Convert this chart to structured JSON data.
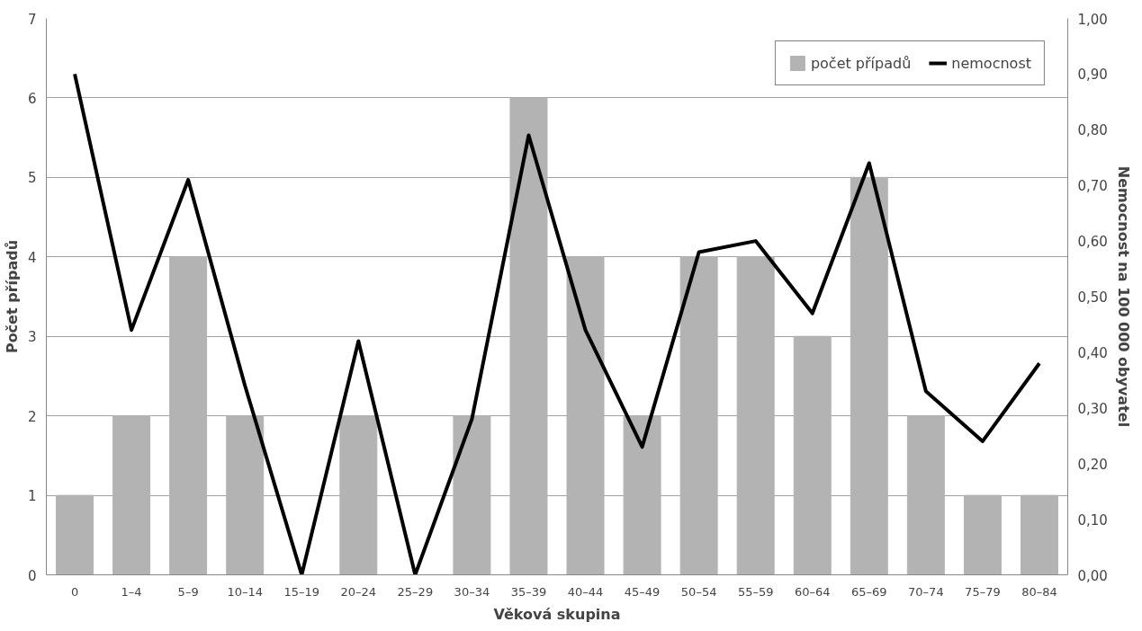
{
  "chart_data": {
    "type": "bar",
    "xlabel": "Věková skupina",
    "ylabel": "Počet případů",
    "y2label": "Nemocnost na 100 000 obyvatel",
    "categories": [
      "0",
      "1–4",
      "5–9",
      "10–14",
      "15–19",
      "20–24",
      "25–29",
      "30–34",
      "35–39",
      "40–44",
      "45–49",
      "50–54",
      "55–59",
      "60–64",
      "65–69",
      "70–74",
      "75–79",
      "80–84"
    ],
    "series": [
      {
        "name": "počet případů",
        "color": "#b3b3b3",
        "values": [
          1,
          2,
          4,
          2,
          0,
          2,
          0,
          2,
          6,
          4,
          2,
          4,
          4,
          3,
          5,
          2,
          1,
          1
        ]
      },
      {
        "name": "nemocnost",
        "type": "line",
        "axis": "y2",
        "color": "#000000",
        "values": [
          0.9,
          0.44,
          0.71,
          0.34,
          0,
          0.42,
          0,
          0.28,
          0.79,
          0.44,
          0.23,
          0.58,
          0.6,
          0.47,
          0.74,
          0.33,
          0.24,
          0.38
        ]
      }
    ],
    "ylim": [
      0,
      7
    ],
    "yticks": [
      0,
      1,
      2,
      3,
      4,
      5,
      6,
      7
    ],
    "y2lim": [
      0,
      1
    ],
    "y2ticks": [
      {
        "value": 0,
        "label": "0,00"
      },
      {
        "value": 0.1,
        "label": "0,10"
      },
      {
        "value": 0.2,
        "label": "0,20"
      },
      {
        "value": 0.3,
        "label": "0,30"
      },
      {
        "value": 0.4,
        "label": "0,40"
      },
      {
        "value": 0.5,
        "label": "0,50"
      },
      {
        "value": 0.6,
        "label": "0,60"
      },
      {
        "value": 0.7,
        "label": "0,70"
      },
      {
        "value": 0.8,
        "label": "0,80"
      },
      {
        "value": 0.9,
        "label": "0,90"
      },
      {
        "value": 1,
        "label": "1,00"
      }
    ],
    "grid": "y",
    "legend": "top right",
    "line_style": "solid"
  }
}
